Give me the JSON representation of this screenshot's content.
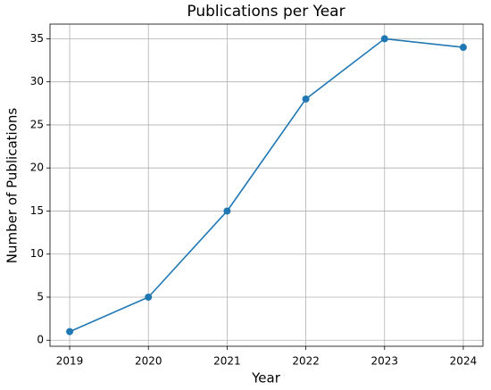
{
  "chart_data": {
    "type": "line",
    "title": "Publications per Year",
    "x_label": "Year",
    "y_label": "Number of Publications",
    "x": [
      2019,
      2020,
      2021,
      2022,
      2023,
      2024
    ],
    "series": [
      {
        "name": "Publications",
        "color": "#1f77b4",
        "values": [
          1,
          5,
          15,
          28,
          35,
          34
        ]
      }
    ],
    "xlim": [
      2018.75,
      2024.25
    ],
    "xticks": [
      2019,
      2020,
      2021,
      2022,
      2023,
      2024
    ],
    "ylim": [
      -0.7,
      36.7
    ],
    "yticks": [
      0,
      5,
      10,
      15,
      20,
      25,
      30,
      35
    ],
    "grid": true
  }
}
